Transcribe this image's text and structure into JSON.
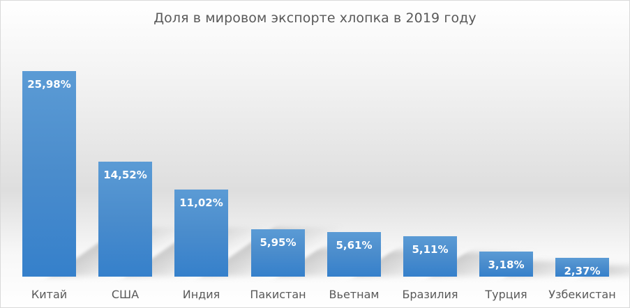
{
  "chart_data": {
    "type": "bar",
    "title": "Доля в мировом экспорте хлопка в 2019 году",
    "xlabel": "",
    "ylabel": "",
    "categories": [
      "Китай",
      "США",
      "Индия",
      "Пакистан",
      "Вьетнам",
      "Бразилия",
      "Турция",
      "Узбекистан"
    ],
    "values": [
      25.98,
      14.52,
      11.02,
      5.95,
      5.61,
      5.11,
      3.18,
      2.37
    ],
    "labels": [
      "25,98%",
      "14,52%",
      "11,02%",
      "5,95%",
      "5,61%",
      "5,11%",
      "3,18%",
      "2,37%"
    ],
    "unit": "%",
    "grid": false,
    "legend": "none",
    "ylim": [
      0,
      26
    ],
    "bar_color": "#5b9bd5"
  }
}
